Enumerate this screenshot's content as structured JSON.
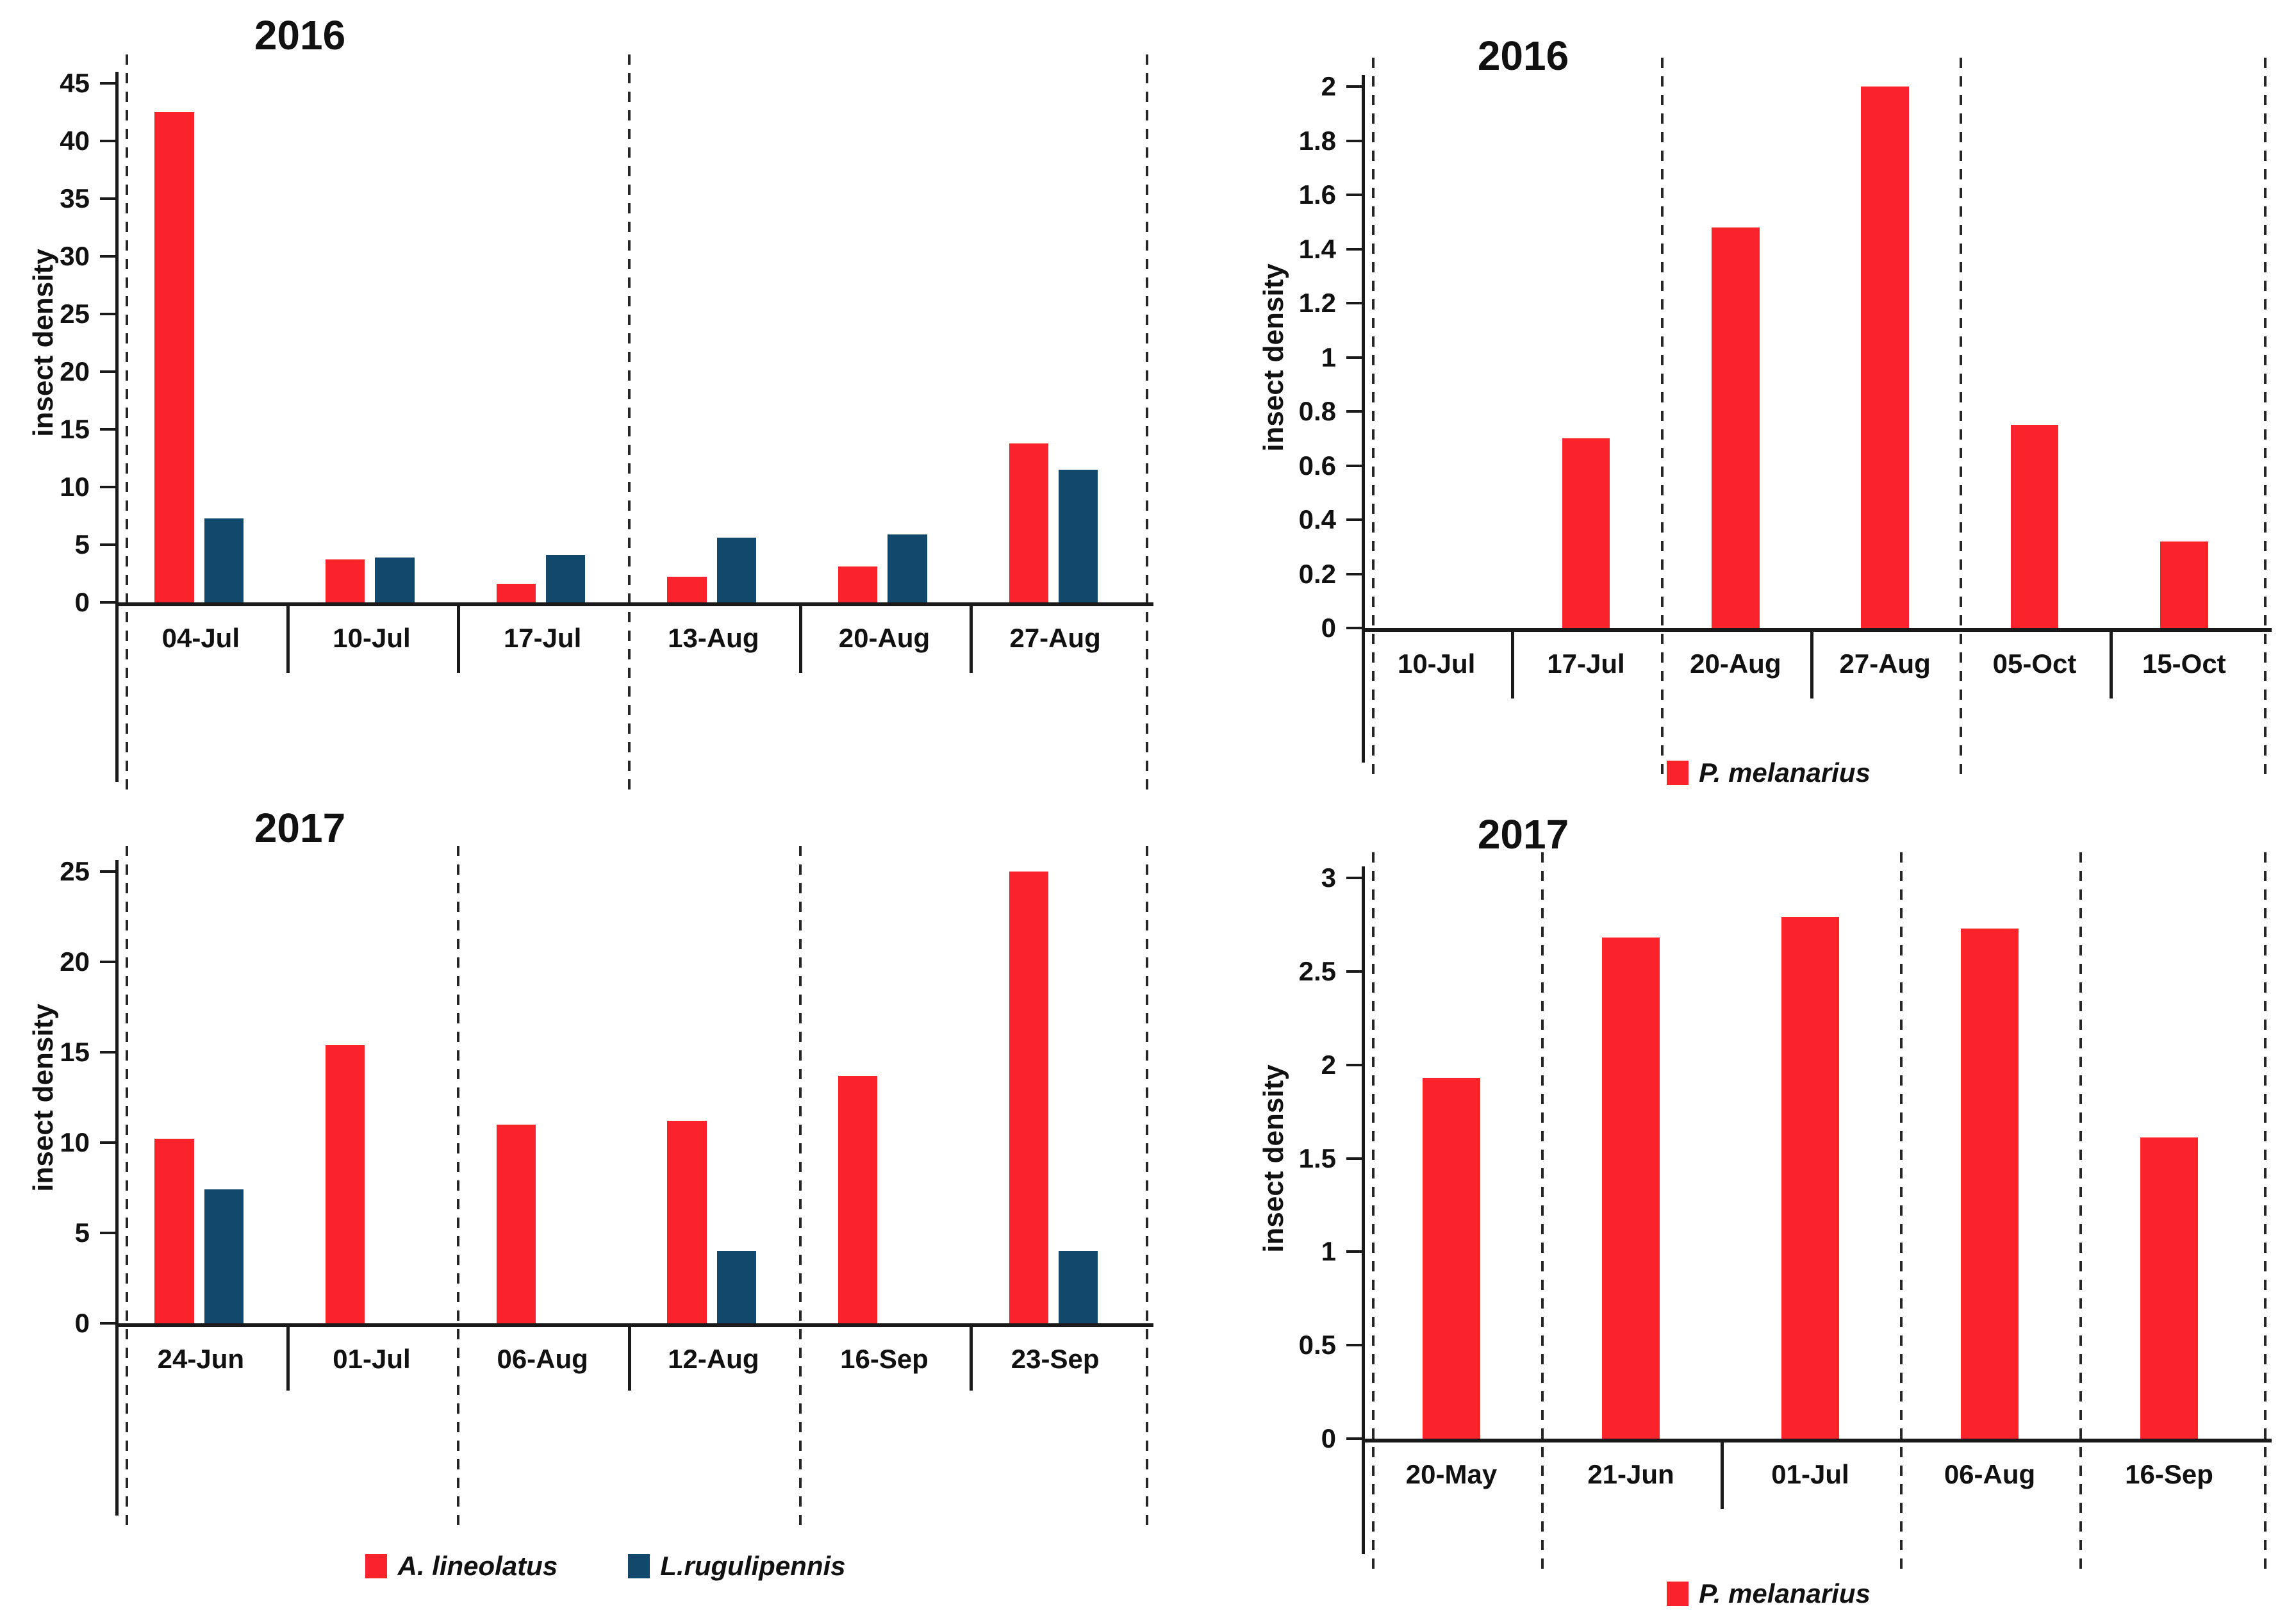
{
  "figure": {
    "ylabel": "insect density",
    "colors": {
      "red": "#FA222B",
      "blue": "#11486C",
      "axis": "#1A1A1A",
      "dash": "#262626",
      "text": "#111111"
    }
  },
  "chart_data": [
    {
      "type": "bar",
      "panel": "top-left",
      "title": "2016",
      "ylabel": "insect density",
      "ylim": [
        0,
        45
      ],
      "yticks": [
        0,
        5,
        10,
        15,
        20,
        25,
        30,
        35,
        40,
        45
      ],
      "categories": [
        "04-Jul",
        "10-Jul",
        "17-Jul",
        "13-Aug",
        "20-Aug",
        "27-Aug"
      ],
      "series": [
        {
          "name": "A. lineolatus",
          "color": "#FA222B",
          "values": [
            42.5,
            3.7,
            1.6,
            2.2,
            3.1,
            13.8
          ]
        },
        {
          "name": "L.rugulipennis",
          "color": "#11486C",
          "values": [
            7.3,
            3.9,
            4.1,
            5.6,
            5.9,
            11.5
          ]
        }
      ],
      "dashed_dividers_at": [
        0,
        3,
        6
      ],
      "tick_dividers_at": [
        1,
        2,
        4,
        5
      ],
      "legend": [],
      "grid": false,
      "legend_position": "none"
    },
    {
      "type": "bar",
      "panel": "top-right",
      "title": "2016",
      "ylabel": "insect density",
      "ylim": [
        0,
        2
      ],
      "yticks": [
        0,
        0.2,
        0.4,
        0.6,
        0.8,
        1,
        1.2,
        1.4,
        1.6,
        1.8,
        2
      ],
      "categories": [
        "10-Jul",
        "17-Jul",
        "20-Aug",
        "27-Aug",
        "05-Oct",
        "15-Oct"
      ],
      "series": [
        {
          "name": "P. melanarius",
          "color": "#FA222B",
          "values": [
            0,
            0.7,
            1.48,
            2,
            0.75,
            0.32
          ]
        }
      ],
      "dashed_dividers_at": [
        0,
        2,
        4,
        6
      ],
      "tick_dividers_at": [
        1,
        3,
        5
      ],
      "legend": [
        {
          "label": "P. melanarius",
          "color": "#FA222B"
        }
      ],
      "grid": false,
      "legend_position": "bottom-center"
    },
    {
      "type": "bar",
      "panel": "bottom-left",
      "title": "2017",
      "ylabel": "insect density",
      "ylim": [
        0,
        25
      ],
      "yticks": [
        0,
        5,
        10,
        15,
        20,
        25
      ],
      "categories": [
        "24-Jun",
        "01-Jul",
        "06-Aug",
        "12-Aug",
        "16-Sep",
        "23-Sep"
      ],
      "series": [
        {
          "name": "A. lineolatus",
          "color": "#FA222B",
          "values": [
            10.2,
            15.4,
            11,
            11.2,
            13.7,
            25
          ]
        },
        {
          "name": "L.rugulipennis",
          "color": "#11486C",
          "values": [
            7.4,
            0,
            0,
            4,
            0,
            4
          ]
        }
      ],
      "dashed_dividers_at": [
        0,
        2,
        4,
        6
      ],
      "tick_dividers_at": [
        1,
        3,
        5
      ],
      "legend": [
        {
          "label": "A. lineolatus",
          "color": "#FA222B"
        },
        {
          "label": "L.rugulipennis",
          "color": "#11486C"
        }
      ],
      "grid": false,
      "legend_position": "bottom-center"
    },
    {
      "type": "bar",
      "panel": "bottom-right",
      "title": "2017",
      "ylabel": "insect density",
      "ylim": [
        0,
        3
      ],
      "yticks": [
        0,
        0.5,
        1,
        1.5,
        2,
        2.5,
        3
      ],
      "categories": [
        "20-May",
        "21-Jun",
        "01-Jul",
        "06-Aug",
        "16-Sep"
      ],
      "series": [
        {
          "name": "P. melanarius",
          "color": "#FA222B",
          "values": [
            1.93,
            2.68,
            2.79,
            2.73,
            1.61
          ]
        }
      ],
      "dashed_dividers_at": [
        0,
        1,
        3,
        4,
        5
      ],
      "tick_dividers_at": [
        2
      ],
      "legend": [
        {
          "label": "P. melanarius",
          "color": "#FA222B"
        }
      ],
      "grid": false,
      "legend_position": "bottom-center"
    }
  ]
}
